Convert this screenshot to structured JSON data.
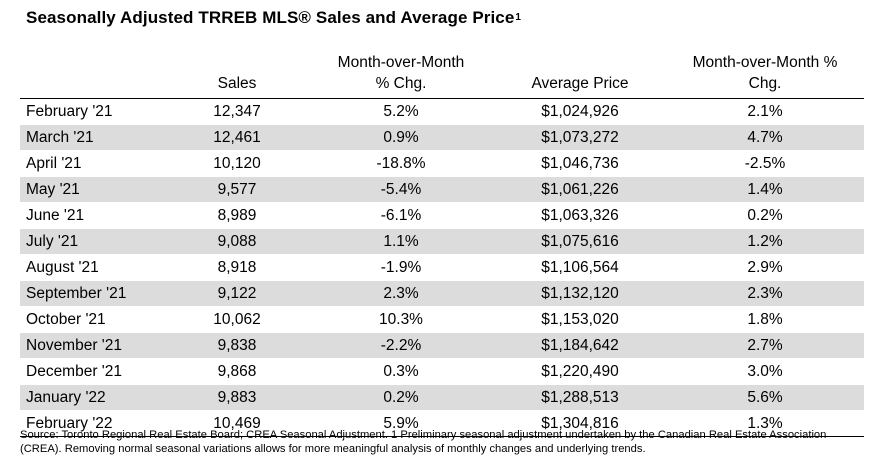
{
  "title": "Seasonally Adjusted TRREB MLS® Sales and Average Price",
  "title_superscript": "1",
  "table": {
    "headers": {
      "month": "",
      "sales": "Sales",
      "sales_mom_line1": "Month-over-Month",
      "sales_mom_line2": "% Chg.",
      "avg_price": "Average Price",
      "price_mom_line1": "Month-over-Month %",
      "price_mom_line2": "Chg."
    },
    "rows": [
      {
        "month": "February '21",
        "sales": "12,347",
        "sales_chg": "5.2%",
        "avg_price": "$1,024,926",
        "price_chg": "2.1%"
      },
      {
        "month": "March '21",
        "sales": "12,461",
        "sales_chg": "0.9%",
        "avg_price": "$1,073,272",
        "price_chg": "4.7%"
      },
      {
        "month": "April '21",
        "sales": "10,120",
        "sales_chg": "-18.8%",
        "avg_price": "$1,046,736",
        "price_chg": "-2.5%"
      },
      {
        "month": "May '21",
        "sales": "9,577",
        "sales_chg": "-5.4%",
        "avg_price": "$1,061,226",
        "price_chg": "1.4%"
      },
      {
        "month": "June '21",
        "sales": "8,989",
        "sales_chg": "-6.1%",
        "avg_price": "$1,063,326",
        "price_chg": "0.2%"
      },
      {
        "month": "July '21",
        "sales": "9,088",
        "sales_chg": "1.1%",
        "avg_price": "$1,075,616",
        "price_chg": "1.2%"
      },
      {
        "month": "August '21",
        "sales": "8,918",
        "sales_chg": "-1.9%",
        "avg_price": "$1,106,564",
        "price_chg": "2.9%"
      },
      {
        "month": "September '21",
        "sales": "9,122",
        "sales_chg": "2.3%",
        "avg_price": "$1,132,120",
        "price_chg": "2.3%"
      },
      {
        "month": "October '21",
        "sales": "10,062",
        "sales_chg": "10.3%",
        "avg_price": "$1,153,020",
        "price_chg": "1.8%"
      },
      {
        "month": "November '21",
        "sales": "9,838",
        "sales_chg": "-2.2%",
        "avg_price": "$1,184,642",
        "price_chg": "2.7%"
      },
      {
        "month": "December '21",
        "sales": "9,868",
        "sales_chg": "0.3%",
        "avg_price": "$1,220,490",
        "price_chg": "3.0%"
      },
      {
        "month": "January '22",
        "sales": "9,883",
        "sales_chg": "0.2%",
        "avg_price": "$1,288,513",
        "price_chg": "5.6%"
      },
      {
        "month": "February '22",
        "sales": "10,469",
        "sales_chg": "5.9%",
        "avg_price": "$1,304,816",
        "price_chg": "1.3%"
      }
    ]
  },
  "source_note": "Source: Toronto Regional Real Estate Board; CREA Seasonal Adjustment. 1 Preliminary seasonal adjustment undertaken by the Canadian Real Estate Association (CREA).  Removing normal seasonal variations allows for more meaningful analysis of monthly changes and underlying trends.",
  "colors": {
    "row_shade": "#dcdcdc",
    "rule": "#000000"
  }
}
